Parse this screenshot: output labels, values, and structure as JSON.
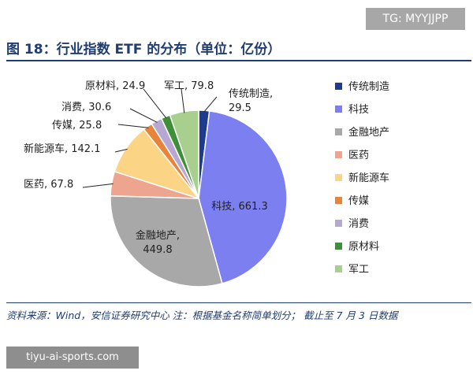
{
  "watermark_top": "TG: MYYJJPP",
  "figure_title": "图 18：行业指数 ETF 的分布（单位：亿份）",
  "source_note": "资料来源：Wind，安信证券研究中心 注：根据基金名称简单划分； 截止至 7 月 3 日数据",
  "watermark_bottom": "tiyu-ai-sports.com",
  "chart_data": {
    "type": "pie",
    "title": "",
    "start_angle_deg": 0,
    "direction": "clockwise",
    "legend_position": "right",
    "slices": [
      {
        "name": "传统制造",
        "value": 29.5,
        "label": "传统制造,\n29.5",
        "color": "#1f3b8f"
      },
      {
        "name": "科技",
        "value": 661.3,
        "label": "科技, 661.3",
        "color": "#7b7ff0"
      },
      {
        "name": "金融地产",
        "value": 449.8,
        "label": "金融地产,\n449.8",
        "color": "#a8a8a8"
      },
      {
        "name": "医药",
        "value": 67.8,
        "label": "医药, 67.8",
        "color": "#eda58f"
      },
      {
        "name": "新能源车",
        "value": 142.1,
        "label": "新能源车, 142.1",
        "color": "#fcd485"
      },
      {
        "name": "传媒",
        "value": 25.8,
        "label": "传媒, 25.8",
        "color": "#e8833a"
      },
      {
        "name": "消费",
        "value": 30.6,
        "label": "消费, 30.6",
        "color": "#b6a8d2"
      },
      {
        "name": "原材料",
        "value": 24.9,
        "label": "原材料, 24.9",
        "color": "#3f8f3a"
      },
      {
        "name": "军工",
        "value": 79.8,
        "label": "军工, 79.8",
        "color": "#a9cf8f"
      }
    ]
  }
}
